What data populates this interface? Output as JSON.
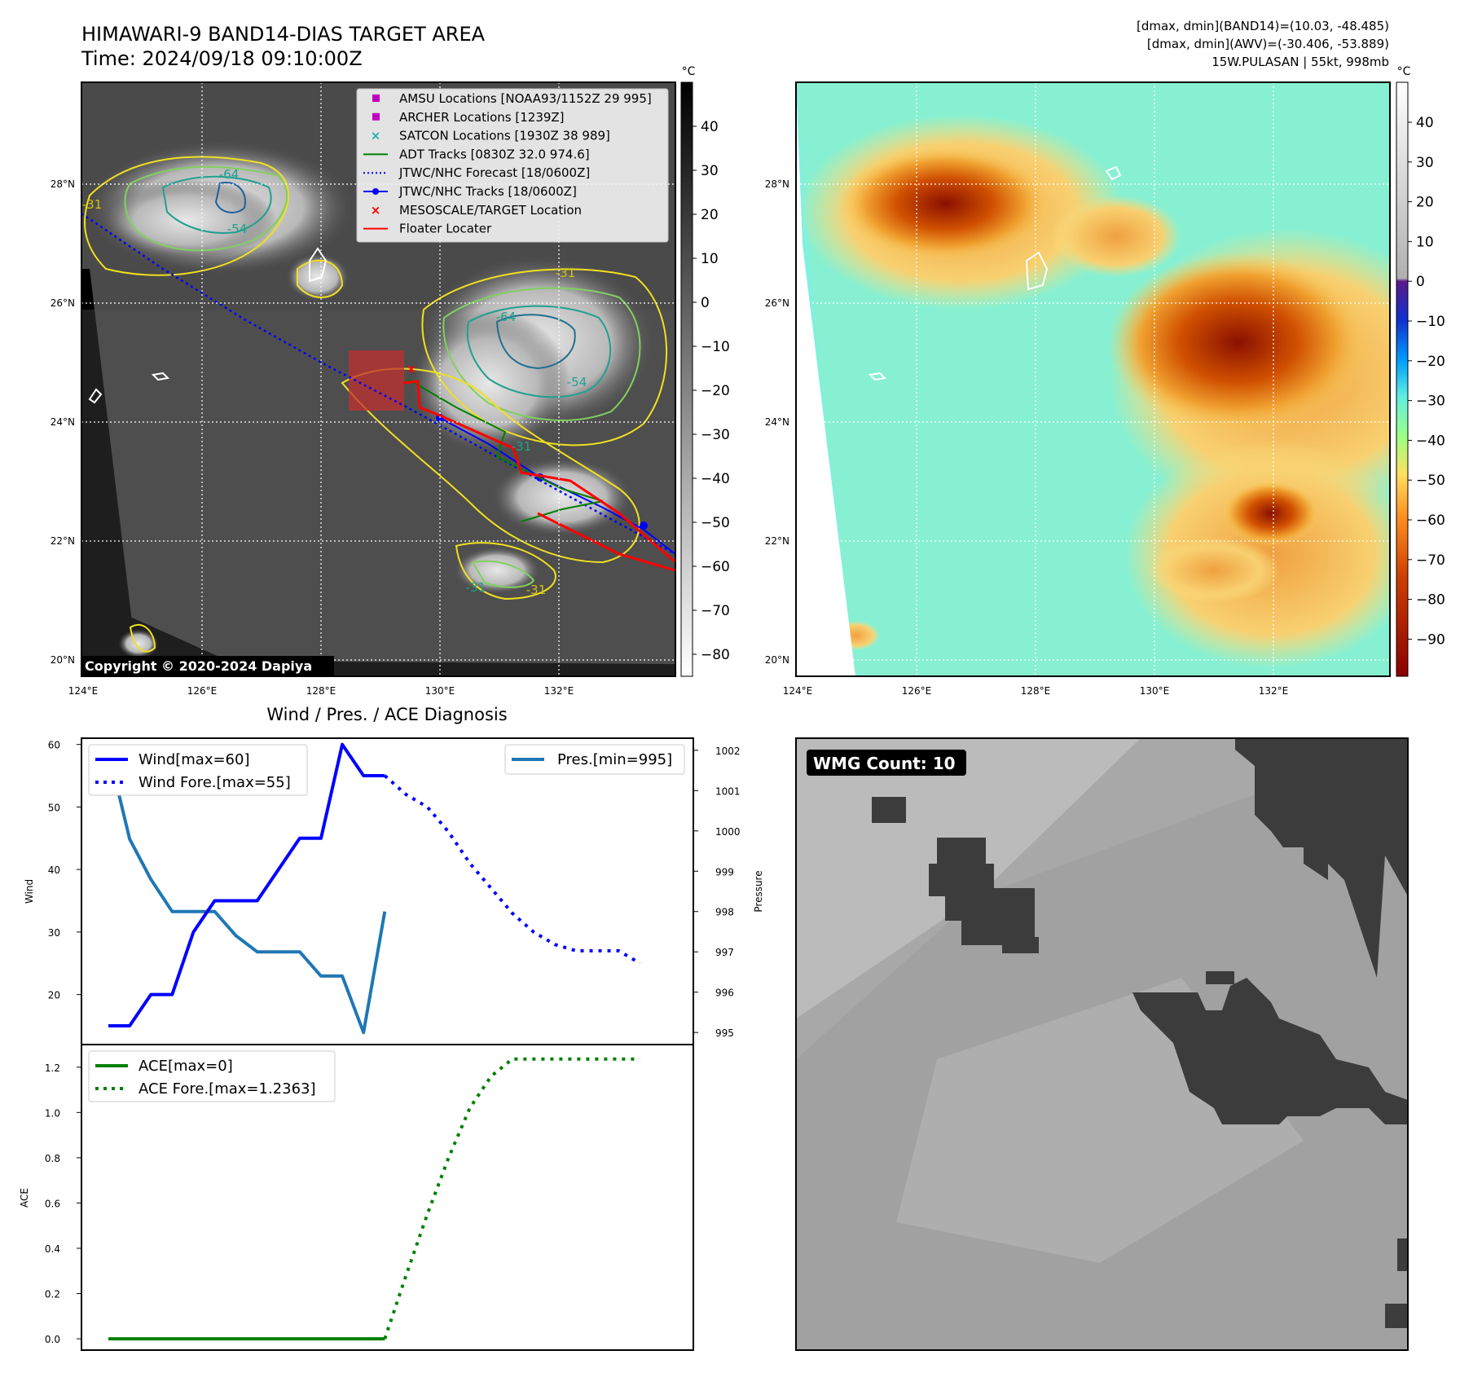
{
  "panel_ir": {
    "title_line1": "HIMAWARI-9 BAND14-DIAS TARGET AREA",
    "title_line2": "Time: 2024/09/18 09:10:00Z",
    "colorbar_unit": "°C",
    "colorbar_ticks": [
      "40",
      "30",
      "20",
      "10",
      "0",
      "−10",
      "−20",
      "−30",
      "−40",
      "−50",
      "−60",
      "−70",
      "−80"
    ],
    "lat_labels": [
      "28°N",
      "26°N",
      "24°N",
      "22°N",
      "20°N"
    ],
    "lon_labels": [
      "124°E",
      "126°E",
      "128°E",
      "130°E",
      "132°E"
    ],
    "copyright": "Copyright © 2020-2024 Dapiya",
    "contour_labels": [
      "-64",
      "-54",
      "-31",
      "-64",
      "-54",
      "-31",
      "-31",
      "-31",
      "-31"
    ],
    "legend": [
      {
        "label": "AMSU Locations [NOAA93/1152Z 29 995]",
        "color": "#c000c0",
        "marker": "square"
      },
      {
        "label": "ARCHER Locations [1239Z]",
        "color": "#c000c0",
        "marker": "square"
      },
      {
        "label": "SATCON Locations [1930Z 38 989]",
        "color": "#20b0b0",
        "marker": "x"
      },
      {
        "label": "ADT Tracks [0830Z 32.0 974.6]",
        "color": "#008000",
        "marker": "line"
      },
      {
        "label": "JTWC/NHC Forecast [18/0600Z]",
        "color": "#0000ff",
        "marker": "dotted"
      },
      {
        "label": "JTWC/NHC Tracks [18/0600Z]",
        "color": "#0000ff",
        "marker": "line-dot"
      },
      {
        "label": "MESOSCALE/TARGET Location",
        "color": "#ff0000",
        "marker": "x"
      },
      {
        "label": "Floater Locater",
        "color": "#ff0000",
        "marker": "line"
      }
    ]
  },
  "panel_awv": {
    "header_line1": "[dmax, dmin](BAND14)=(10.03, -48.485)",
    "header_line2": "[dmax, dmin](AWV)=(-30.406, -53.889)",
    "header_line3": "15W.PULASAN | 55kt, 998mb",
    "colorbar_unit": "°C",
    "colorbar_ticks": [
      "40",
      "30",
      "20",
      "10",
      "0",
      "−10",
      "−20",
      "−30",
      "−40",
      "−50",
      "−60",
      "−70",
      "−80",
      "−90"
    ],
    "lat_labels": [
      "28°N",
      "26°N",
      "24°N",
      "22°N",
      "20°N"
    ],
    "lon_labels": [
      "124°E",
      "126°E",
      "128°E",
      "130°E",
      "132°E"
    ]
  },
  "panel_wind": {
    "title": "Wind / Pres. / ACE Diagnosis",
    "ylabel_left": "Wind",
    "ylabel_right": "Pressure",
    "legend_wind": "Wind[max=60]",
    "legend_wind_fore": "Wind Fore.[max=55]",
    "legend_pres": "Pres.[min=995]",
    "y_ticks": [
      "60",
      "50",
      "40",
      "30",
      "20"
    ],
    "y2_ticks": [
      "1002",
      "1001",
      "1000",
      "999",
      "998",
      "997",
      "996",
      "995"
    ],
    "wind_color": "#0000ff",
    "pres_color": "#1f77b4"
  },
  "panel_ace": {
    "ylabel": "ACE",
    "legend_ace": "ACE[max=0]",
    "legend_ace_fore": "ACE Fore.[max=1.2363]",
    "y_ticks": [
      "1.2",
      "1.0",
      "0.8",
      "0.6",
      "0.4",
      "0.2",
      "0.0"
    ],
    "ace_color": "#008000"
  },
  "panel_wmg": {
    "label": "WMG Count: 10"
  },
  "chart_data": [
    {
      "type": "line",
      "ylim": [
        12,
        61
      ],
      "y2lim": [
        994.7,
        1002.3
      ],
      "series": [
        {
          "name": "Wind[max=60]",
          "style": "solid",
          "x": [
            0,
            1,
            2,
            3,
            4,
            5,
            6,
            7,
            8,
            9,
            10,
            11,
            12,
            13
          ],
          "values": [
            15,
            15,
            20,
            20,
            30,
            35,
            35,
            35,
            40,
            45,
            45,
            60,
            55,
            55
          ]
        },
        {
          "name": "Wind Fore.[max=55]",
          "style": "dotted",
          "x": [
            13,
            14,
            15,
            16,
            17,
            18,
            19,
            20,
            21,
            22,
            23,
            24,
            25
          ],
          "values": [
            55,
            52,
            50,
            46,
            41,
            37,
            33,
            30,
            28,
            27,
            27,
            27,
            25
          ]
        },
        {
          "name": "Pres.[min=995]",
          "style": "solid",
          "axis": "right",
          "x": [
            0,
            1,
            2,
            3,
            4,
            5,
            6,
            7,
            8,
            9,
            10,
            11,
            12,
            13
          ],
          "values": [
            1002,
            999.8,
            998.8,
            998,
            998,
            998,
            997.4,
            997,
            997,
            997,
            996.4,
            996.4,
            995,
            998
          ]
        }
      ]
    },
    {
      "type": "line",
      "ylim": [
        -0.05,
        1.3
      ],
      "series": [
        {
          "name": "ACE[max=0]",
          "style": "solid",
          "x": [
            0,
            13
          ],
          "values": [
            0,
            0
          ]
        },
        {
          "name": "ACE Fore.[max=1.2363]",
          "style": "dotted",
          "x": [
            13,
            14,
            15,
            16,
            17,
            18,
            19,
            20,
            21,
            22,
            23,
            24,
            25
          ],
          "values": [
            0,
            0.28,
            0.55,
            0.8,
            1.02,
            1.16,
            1.2363,
            1.2363,
            1.2363,
            1.2363,
            1.2363,
            1.2363,
            1.2363
          ]
        }
      ]
    }
  ]
}
